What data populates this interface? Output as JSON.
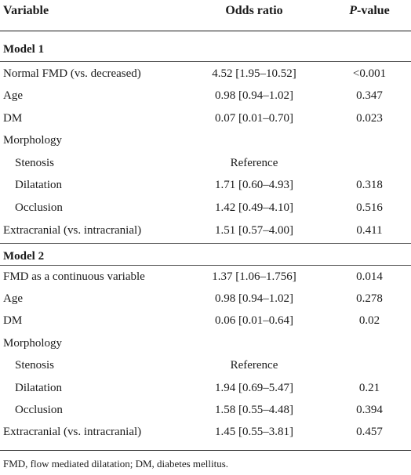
{
  "header": {
    "variable": "Variable",
    "odds_ratio": "Odds ratio",
    "p_prefix": "P",
    "p_suffix": "-value"
  },
  "model1": {
    "title": "Model 1",
    "rows": [
      {
        "variable": "Normal FMD (vs. decreased)",
        "or": "4.52 [1.95–10.52]",
        "p": "<0.001"
      },
      {
        "variable": "Age",
        "or": "0.98 [0.94–1.02]",
        "p": "0.347"
      },
      {
        "variable": "DM",
        "or": "0.07 [0.01–0.70]",
        "p": "0.023"
      },
      {
        "variable": "Morphology",
        "or": "",
        "p": ""
      },
      {
        "variable": "Stenosis",
        "or": "Reference",
        "p": ""
      },
      {
        "variable": "Dilatation",
        "or": "1.71 [0.60–4.93]",
        "p": "0.318"
      },
      {
        "variable": "Occlusion",
        "or": "1.42 [0.49–4.10]",
        "p": "0.516"
      },
      {
        "variable": "Extracranial (vs. intracranial)",
        "or": "1.51 [0.57–4.00]",
        "p": "0.411"
      }
    ]
  },
  "model2": {
    "title": "Model 2",
    "rows": [
      {
        "variable": "FMD as a continuous variable",
        "or": "1.37 [1.06–1.756]",
        "p": "0.014"
      },
      {
        "variable": "Age",
        "or": "0.98 [0.94–1.02]",
        "p": "0.278"
      },
      {
        "variable": "DM",
        "or": "0.06 [0.01–0.64]",
        "p": "0.02"
      },
      {
        "variable": "Morphology",
        "or": "",
        "p": ""
      },
      {
        "variable": "Stenosis",
        "or": "Reference",
        "p": ""
      },
      {
        "variable": "Dilatation",
        "or": "1.94 [0.69–5.47]",
        "p": "0.21"
      },
      {
        "variable": "Occlusion",
        "or": "1.58 [0.55–4.48]",
        "p": "0.394"
      },
      {
        "variable": "Extracranial (vs. intracranial)",
        "or": "1.45 [0.55–3.81]",
        "p": "0.457"
      }
    ]
  },
  "footnote": "FMD, flow mediated dilatation; DM, diabetes mellitus."
}
